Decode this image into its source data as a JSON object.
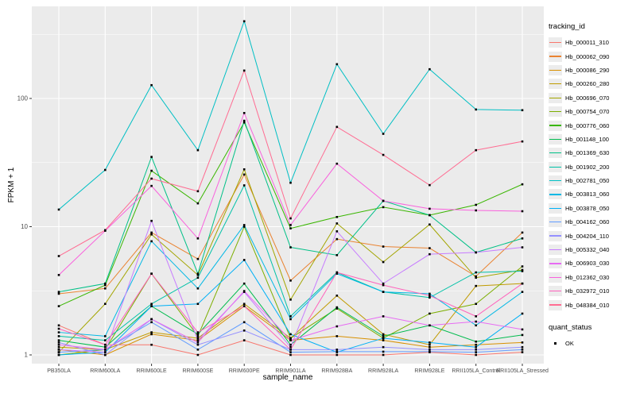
{
  "colors": {
    "figure_bg": "#FFFFFF",
    "panel_bg": "#EBEBEB",
    "grid": "#FFFFFF",
    "axis_text": "#4D4D4D",
    "tick": "#333333",
    "point": "#000000",
    "legend_key_bg": "#ECECEC"
  },
  "legend": {
    "tracking_title": "tracking_id",
    "quant_title": "quant_status",
    "quant_entries": [
      {
        "label": "OK",
        "marker": "black-square"
      }
    ]
  },
  "chart_data": {
    "type": "line",
    "title": "",
    "xlabel": "sample_name",
    "ylabel": "FPKM + 1",
    "grid": true,
    "legend_position": "right",
    "point_marker": "black-square",
    "x_categories": [
      "PB350LA",
      "RRIM600LA",
      "RRIM600LE",
      "RRIM600SE",
      "RRIM600PE",
      "RRIM901LA",
      "RRIM928BA",
      "RRIM928LA",
      "RRIM928LE",
      "RRII105LA_Control",
      "RRII105LA_Stressed"
    ],
    "y_axis": {
      "scale": "log10",
      "ticks": [
        1,
        10,
        100
      ],
      "tick_labels": [
        "1",
        "10",
        "100"
      ],
      "minor_ticks": [
        3.1623,
        31.623,
        316.23
      ],
      "range": [
        0.88,
        508
      ]
    },
    "series": [
      {
        "name": "Hb_000011_310",
        "color": "#F8766D",
        "values": [
          1.7,
          1.2,
          1.2,
          1.0,
          1.3,
          1.0,
          1.0,
          1.0,
          1.05,
          1.0,
          1.05
        ]
      },
      {
        "name": "Hb_000062_090",
        "color": "#EA8331",
        "values": [
          3.0,
          3.3,
          9.0,
          5.6,
          25.5,
          3.8,
          8.0,
          7.0,
          6.8,
          4.1,
          9.0
        ]
      },
      {
        "name": "Hb_000086_290",
        "color": "#D89000",
        "values": [
          1.1,
          1.0,
          1.45,
          1.3,
          2.4,
          1.3,
          1.4,
          1.3,
          1.15,
          1.2,
          1.25
        ]
      },
      {
        "name": "Hb_000260_280",
        "color": "#C09B00",
        "values": [
          1.15,
          1.1,
          1.5,
          1.35,
          2.5,
          1.35,
          2.9,
          1.45,
          1.2,
          3.45,
          3.6
        ]
      },
      {
        "name": "Hb_000696_070",
        "color": "#A3A500",
        "values": [
          1.05,
          2.5,
          8.7,
          4.2,
          28,
          2.7,
          10.6,
          5.3,
          10.4,
          4.0,
          4.6
        ]
      },
      {
        "name": "Hb_000754_070",
        "color": "#7CAE00",
        "values": [
          1.0,
          1.1,
          4.3,
          1.4,
          10.0,
          1.35,
          2.3,
          1.35,
          2.1,
          2.5,
          4.9
        ]
      },
      {
        "name": "Hb_000776_060",
        "color": "#39B600",
        "values": [
          2.4,
          3.5,
          27.3,
          15.2,
          65,
          9.7,
          11.9,
          14.2,
          12.3,
          14.8,
          21.4
        ]
      },
      {
        "name": "Hb_001148_100",
        "color": "#00BB4E",
        "values": [
          1.3,
          1.15,
          2.4,
          1.45,
          3.6,
          1.2,
          2.35,
          1.4,
          1.7,
          1.27,
          1.43
        ]
      },
      {
        "name": "Hb_001369_630",
        "color": "#00C087",
        "values": [
          3.1,
          3.6,
          35,
          4.3,
          67,
          6.9,
          6.0,
          15.9,
          12.3,
          6.3,
          8.1
        ]
      },
      {
        "name": "Hb_001902_200",
        "color": "#00C1A7",
        "values": [
          1.4,
          1.3,
          2.5,
          4.0,
          21,
          2.0,
          4.4,
          3.1,
          2.8,
          4.4,
          4.5
        ]
      },
      {
        "name": "Hb_002781_050",
        "color": "#00BFC4",
        "values": [
          13.6,
          27.7,
          127,
          39.5,
          400,
          22,
          185,
          53,
          169,
          82,
          81
        ]
      },
      {
        "name": "Hb_003813_060",
        "color": "#00B8E5",
        "values": [
          1.5,
          1.4,
          7.7,
          3.3,
          10.3,
          1.9,
          4.3,
          3.1,
          3.0,
          1.7,
          3.1
        ]
      },
      {
        "name": "Hb_003878_050",
        "color": "#00B0F6",
        "values": [
          1.0,
          1.05,
          2.4,
          2.5,
          5.5,
          1.45,
          1.05,
          1.35,
          1.25,
          1.15,
          2.1
        ]
      },
      {
        "name": "Hb_004162_060",
        "color": "#619CFF",
        "values": [
          1.05,
          1.1,
          1.8,
          1.1,
          1.8,
          1.05,
          1.06,
          1.06,
          1.06,
          1.05,
          1.1
        ]
      },
      {
        "name": "Hb_004204_110",
        "color": "#9590FF",
        "values": [
          1.25,
          1.0,
          1.9,
          1.2,
          1.55,
          1.1,
          1.1,
          1.15,
          1.1,
          1.1,
          1.15
        ]
      },
      {
        "name": "Hb_005332_040",
        "color": "#C77CFF",
        "values": [
          1.1,
          1.05,
          11.1,
          1.3,
          3.1,
          1.15,
          9.2,
          3.6,
          6.1,
          6.3,
          6.9
        ]
      },
      {
        "name": "Hb_006903_030",
        "color": "#E76BF3",
        "values": [
          1.2,
          1.1,
          1.9,
          1.25,
          3.15,
          1.3,
          1.67,
          2.0,
          1.7,
          1.82,
          1.58
        ]
      },
      {
        "name": "Hb_012362_030",
        "color": "#F962DD",
        "values": [
          4.2,
          9.3,
          20.8,
          8.1,
          77,
          10.3,
          31,
          15.9,
          13.8,
          13.4,
          13.2
        ]
      },
      {
        "name": "Hb_032972_010",
        "color": "#FF62BC",
        "values": [
          1.6,
          1.2,
          4.3,
          1.5,
          2.4,
          1.1,
          4.4,
          3.5,
          2.9,
          2.0,
          3.6
        ]
      },
      {
        "name": "Hb_048384_010",
        "color": "#FF6C92",
        "values": [
          5.9,
          9.4,
          23.7,
          18.9,
          165,
          11.6,
          60,
          36.3,
          21.1,
          39.5,
          46.2
        ]
      }
    ]
  }
}
